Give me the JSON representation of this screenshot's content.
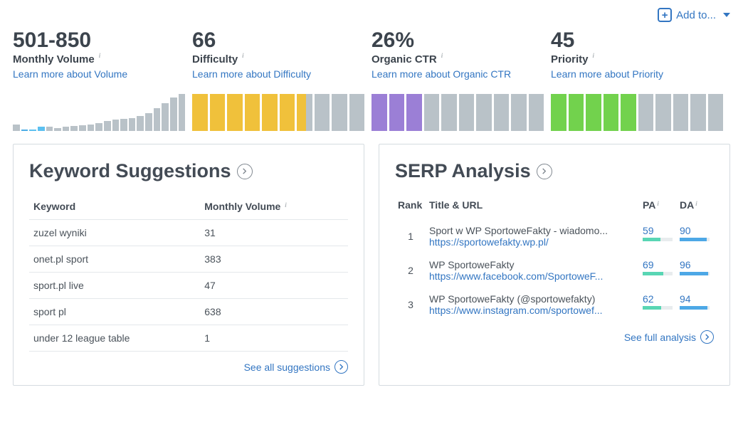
{
  "topbar": {
    "add_label": "Add to..."
  },
  "metrics": {
    "volume": {
      "value": "501-850",
      "label": "Monthly Volume",
      "learn": "Learn more about Volume"
    },
    "difficulty": {
      "value": "66",
      "label": "Difficulty",
      "learn": "Learn more about Difficulty"
    },
    "ctr": {
      "value": "26%",
      "label": "Organic CTR",
      "learn": "Learn more about Organic CTR"
    },
    "priority": {
      "value": "45",
      "label": "Priority",
      "learn": "Learn more about Priority"
    }
  },
  "volume_chart": {
    "type": "histogram",
    "bar_heights_pct": [
      18,
      4,
      4,
      12,
      12,
      8,
      12,
      14,
      16,
      18,
      22,
      26,
      30,
      32,
      34,
      40,
      48,
      62,
      75,
      90,
      100
    ],
    "highlight_indices": [
      1,
      2,
      3
    ],
    "strong_highlight_indices": [
      2,
      3
    ],
    "base_color": "#b9c2c8",
    "highlight_color": "#4eaee6"
  },
  "difficulty_chart": {
    "type": "segmented",
    "total": 10,
    "filled": 6,
    "half": true,
    "color": "#f0c13b",
    "bg": "#b9c2c8"
  },
  "ctr_chart": {
    "type": "segmented",
    "total": 10,
    "filled": 3,
    "half": false,
    "color": "#9b7fd6",
    "bg": "#b9c2c8"
  },
  "priority_chart": {
    "type": "segmented",
    "total": 10,
    "filled": 5,
    "half": false,
    "color": "#72d24d",
    "bg": "#b9c2c8"
  },
  "suggestions": {
    "title": "Keyword Suggestions",
    "col_keyword": "Keyword",
    "col_volume": "Monthly Volume",
    "rows": [
      {
        "kw": "zuzel wyniki",
        "vol": "31"
      },
      {
        "kw": "onet.pl sport",
        "vol": "383"
      },
      {
        "kw": "sport.pl live",
        "vol": "47"
      },
      {
        "kw": "sport pl",
        "vol": "638"
      },
      {
        "kw": "under 12 league table",
        "vol": "1"
      }
    ],
    "see_all": "See all suggestions"
  },
  "serp": {
    "title": "SERP Analysis",
    "col_rank": "Rank",
    "col_title": "Title & URL",
    "col_pa": "PA",
    "col_da": "DA",
    "rows": [
      {
        "rank": "1",
        "title": "Sport w WP SportoweFakty - wiadomo...",
        "url": "https://sportowefakty.wp.pl/",
        "pa": 59,
        "da": 90
      },
      {
        "rank": "2",
        "title": "WP SportoweFakty",
        "url": "https://www.facebook.com/SportoweF...",
        "pa": 69,
        "da": 96
      },
      {
        "rank": "3",
        "title": "WP SportoweFakty (@sportowefakty)",
        "url": "https://www.instagram.com/sportowef...",
        "pa": 62,
        "da": 94
      }
    ],
    "see_all": "See full analysis"
  },
  "colors": {
    "link": "#3376c2",
    "text": "#434b55",
    "muted_bar": "#b9c2c8"
  }
}
